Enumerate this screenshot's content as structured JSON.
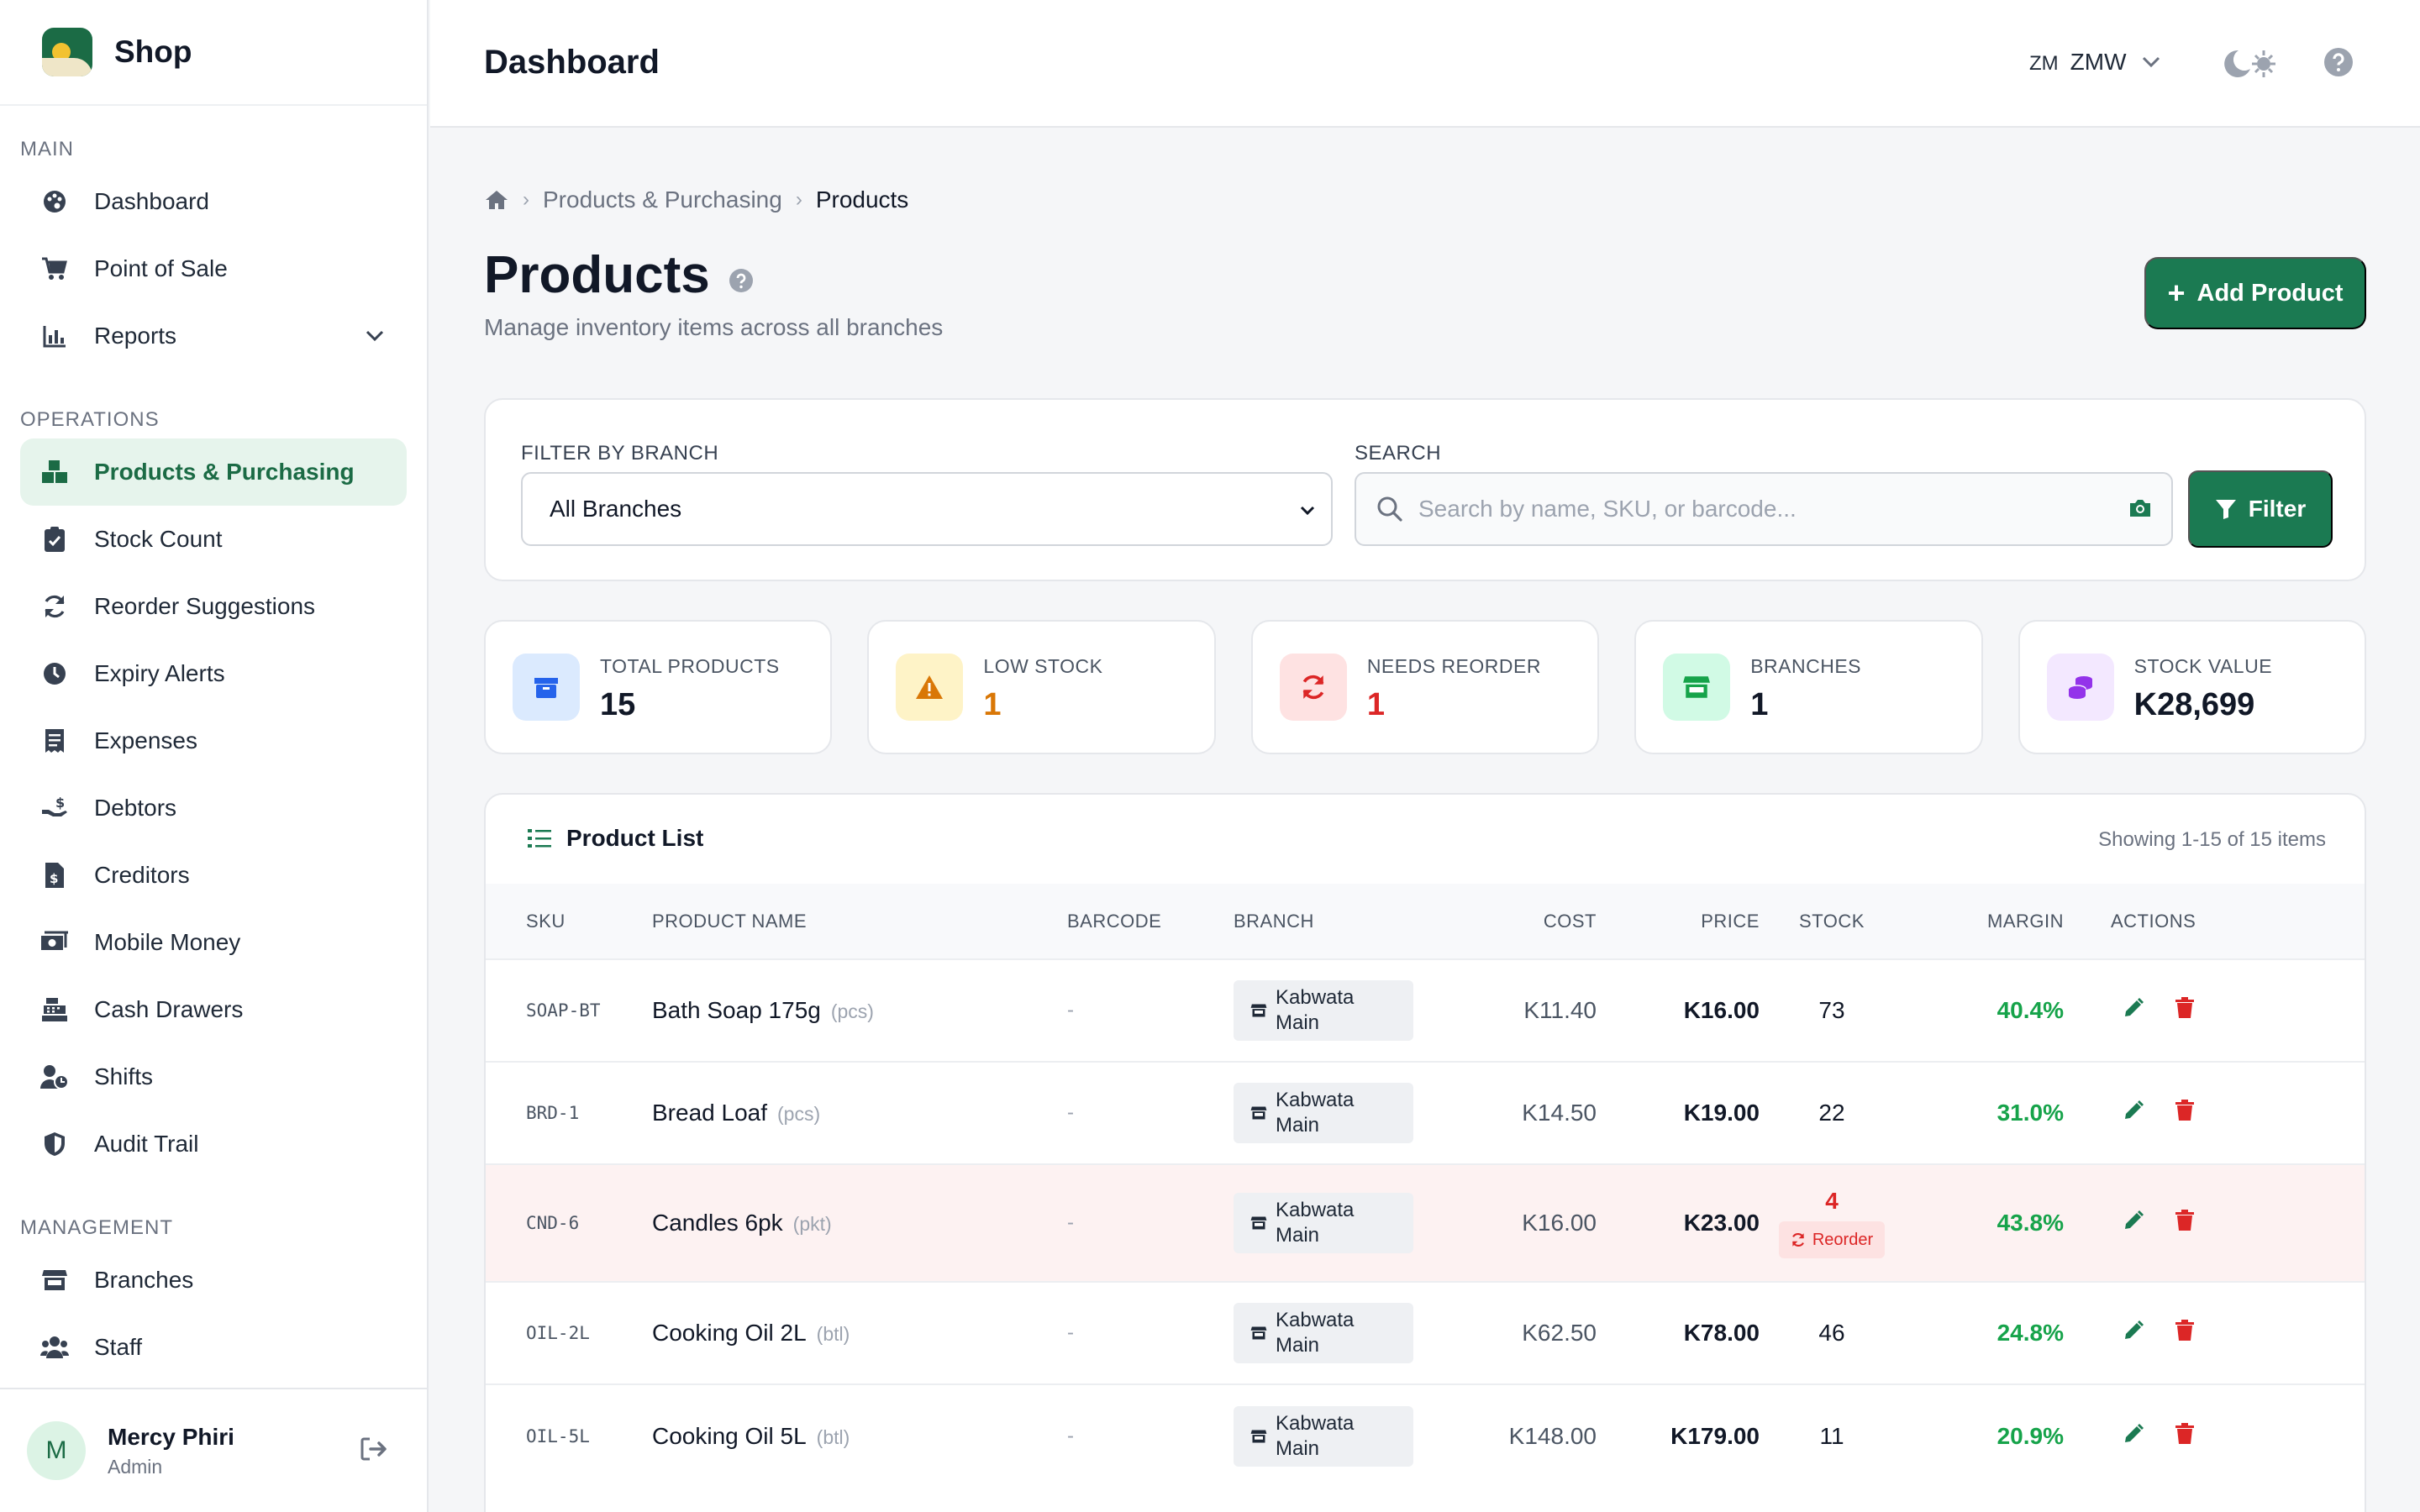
{
  "brand": {
    "name": "Shop"
  },
  "sidebar": {
    "sections": [
      {
        "title": "MAIN",
        "items": [
          {
            "label": "Dashboard",
            "icon": "palette-icon"
          },
          {
            "label": "Point of Sale",
            "icon": "cart-icon"
          },
          {
            "label": "Reports",
            "icon": "chart-icon",
            "has_children": true
          }
        ]
      },
      {
        "title": "OPERATIONS",
        "items": [
          {
            "label": "Products & Purchasing",
            "icon": "boxes-icon",
            "active": true
          },
          {
            "label": "Stock Count",
            "icon": "clipboard-check-icon"
          },
          {
            "label": "Reorder Suggestions",
            "icon": "sync-icon"
          },
          {
            "label": "Expiry Alerts",
            "icon": "clock-icon"
          },
          {
            "label": "Expenses",
            "icon": "receipt-icon"
          },
          {
            "label": "Debtors",
            "icon": "hand-dollar-icon"
          },
          {
            "label": "Creditors",
            "icon": "invoice-dollar-icon"
          },
          {
            "label": "Mobile Money",
            "icon": "money-bill-icon"
          },
          {
            "label": "Cash Drawers",
            "icon": "cash-register-icon"
          },
          {
            "label": "Shifts",
            "icon": "user-clock-icon"
          },
          {
            "label": "Audit Trail",
            "icon": "shield-icon"
          }
        ]
      },
      {
        "title": "MANAGEMENT",
        "items": [
          {
            "label": "Branches",
            "icon": "store-icon"
          },
          {
            "label": "Staff",
            "icon": "users-icon"
          }
        ]
      }
    ]
  },
  "user": {
    "initial": "M",
    "name": "Mercy Phiri",
    "role": "Admin"
  },
  "header": {
    "title": "Dashboard",
    "currency_code": "ZM",
    "currency": "ZMW"
  },
  "breadcrumb": {
    "section": "Products & Purchasing",
    "current": "Products"
  },
  "page": {
    "title": "Products",
    "subtitle": "Manage inventory items across all branches",
    "add_button": "Add Product"
  },
  "filters": {
    "branch_label": "FILTER BY BRANCH",
    "branch_value": "All Branches",
    "search_label": "SEARCH",
    "search_placeholder": "Search by name, SKU, or barcode...",
    "filter_button": "Filter"
  },
  "stats": [
    {
      "label": "TOTAL PRODUCTS",
      "value": "15",
      "color": "#2563eb",
      "bg": "#dbeafe",
      "icon": "box-icon",
      "value_color": "#111827"
    },
    {
      "label": "LOW STOCK",
      "value": "1",
      "color": "#d97706",
      "bg": "#fef3c7",
      "icon": "warning-icon",
      "value_color": "#d97706"
    },
    {
      "label": "NEEDS REORDER",
      "value": "1",
      "color": "#dc2626",
      "bg": "#fee2e2",
      "icon": "sync-icon",
      "value_color": "#dc2626"
    },
    {
      "label": "BRANCHES",
      "value": "1",
      "color": "#16a34a",
      "bg": "#d1fae5",
      "icon": "store-icon",
      "value_color": "#111827"
    },
    {
      "label": "STOCK VALUE",
      "value": "K28,699",
      "color": "#9333ea",
      "bg": "#f3e8ff",
      "icon": "coins-icon",
      "value_color": "#111827"
    }
  ],
  "table": {
    "title": "Product List",
    "count_text": "Showing 1-15 of 15 items",
    "columns": [
      "SKU",
      "PRODUCT NAME",
      "BARCODE",
      "BRANCH",
      "COST",
      "PRICE",
      "STOCK",
      "MARGIN",
      "ACTIONS"
    ],
    "rows": [
      {
        "sku": "SOAP-BT",
        "name": "Bath Soap 175g",
        "unit": "(pcs)",
        "barcode": "-",
        "branch_line1": "Kabwata",
        "branch_line2": "Main",
        "cost": "K11.40",
        "price": "K16.00",
        "stock": "73",
        "margin": "40.4%",
        "reorder": false
      },
      {
        "sku": "BRD-1",
        "name": "Bread Loaf",
        "unit": "(pcs)",
        "barcode": "-",
        "branch_line1": "Kabwata",
        "branch_line2": "Main",
        "cost": "K14.50",
        "price": "K19.00",
        "stock": "22",
        "margin": "31.0%",
        "reorder": false
      },
      {
        "sku": "CND-6",
        "name": "Candles 6pk",
        "unit": "(pkt)",
        "barcode": "-",
        "branch_line1": "Kabwata",
        "branch_line2": "Main",
        "cost": "K16.00",
        "price": "K23.00",
        "stock": "4",
        "margin": "43.8%",
        "reorder": true,
        "reorder_label": "Reorder"
      },
      {
        "sku": "OIL-2L",
        "name": "Cooking Oil 2L",
        "unit": "(btl)",
        "barcode": "-",
        "branch_line1": "Kabwata",
        "branch_line2": "Main",
        "cost": "K62.50",
        "price": "K78.00",
        "stock": "46",
        "margin": "24.8%",
        "reorder": false
      },
      {
        "sku": "OIL-5L",
        "name": "Cooking Oil 5L",
        "unit": "(btl)",
        "barcode": "-",
        "branch_line1": "Kabwata",
        "branch_line2": "Main",
        "cost": "K148.00",
        "price": "K179.00",
        "stock": "11",
        "margin": "20.9%",
        "reorder": false
      }
    ]
  },
  "colors": {
    "brand": "#1b7a52",
    "active_bg": "#e6f4ec",
    "margin": "#16a34a",
    "danger": "#dc2626"
  }
}
